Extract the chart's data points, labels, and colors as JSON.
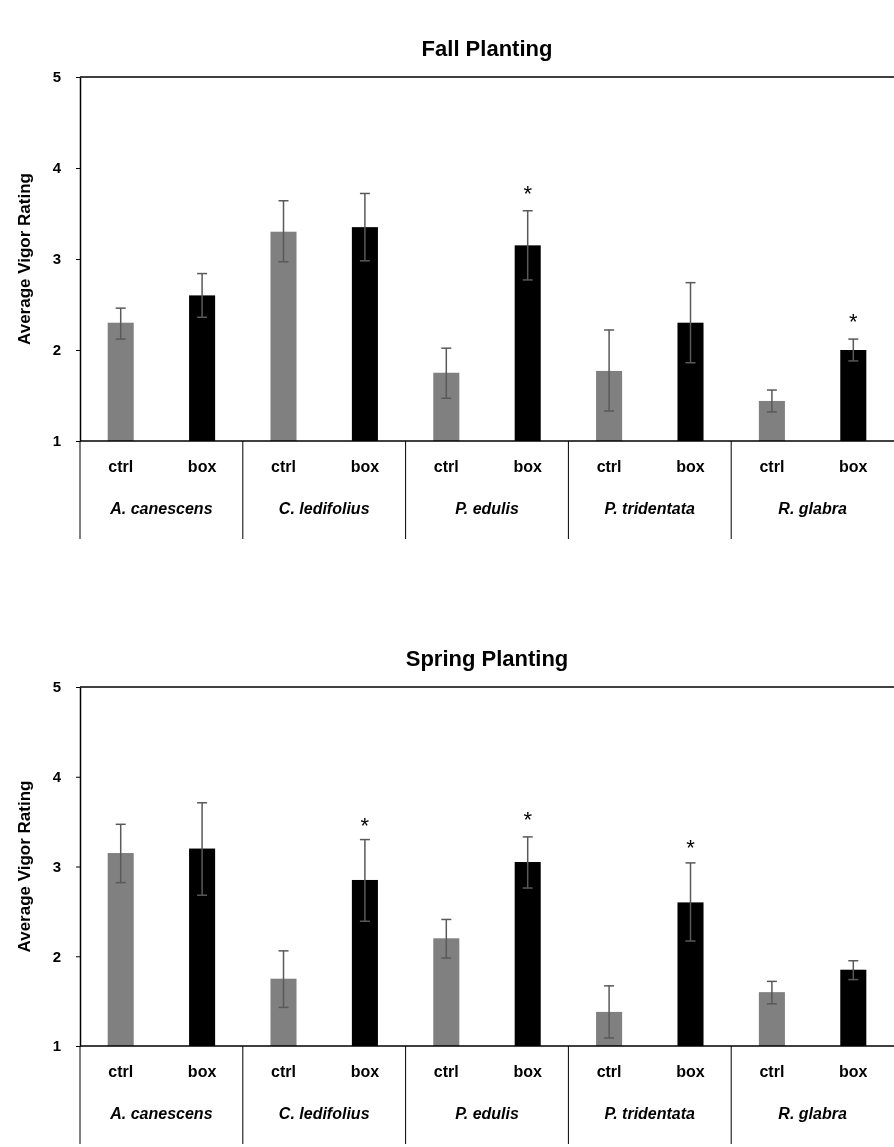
{
  "chart_data": [
    {
      "type": "bar",
      "title": "Fall Planting",
      "ylabel": "Average Vigor Rating",
      "categories": [
        "A. canescens",
        "C. ledifolius",
        "P. edulis",
        "P. tridentata",
        "R. glabra"
      ],
      "ylim": [
        1,
        5
      ],
      "yticks": [
        1,
        2,
        3,
        4,
        5
      ],
      "grid": false,
      "series": [
        {
          "name": "ctrl",
          "color": "#808080",
          "values": [
            2.3,
            3.3,
            1.75,
            1.77,
            1.44
          ],
          "errors": [
            [
              2.12,
              2.46
            ],
            [
              2.97,
              3.64
            ],
            [
              1.47,
              2.02
            ],
            [
              1.33,
              2.22
            ],
            [
              1.32,
              1.56
            ]
          ]
        },
        {
          "name": "box",
          "color": "#000000",
          "values": [
            2.6,
            3.35,
            3.15,
            2.3,
            2.0
          ],
          "errors": [
            [
              2.36,
              2.84
            ],
            [
              2.98,
              3.72
            ],
            [
              2.77,
              3.53
            ],
            [
              1.86,
              2.74
            ],
            [
              1.88,
              2.12
            ]
          ]
        }
      ],
      "annotations": [
        "*",
        "*"
      ]
    },
    {
      "type": "bar",
      "title": "Spring Planting",
      "ylabel": "Average Vigor Rating",
      "categories": [
        "A. canescens",
        "C. ledifolius",
        "P. edulis",
        "P. tridentata",
        "R. glabra"
      ],
      "ylim": [
        1,
        5
      ],
      "yticks": [
        1,
        2,
        3,
        4,
        5
      ],
      "grid": false,
      "series": [
        {
          "name": "ctrl",
          "color": "#808080",
          "values": [
            3.15,
            1.75,
            2.2,
            1.38,
            1.6
          ],
          "errors": [
            [
              2.82,
              3.47
            ],
            [
              1.43,
              2.06
            ],
            [
              1.98,
              2.41
            ],
            [
              1.09,
              1.67
            ],
            [
              1.47,
              1.72
            ]
          ]
        },
        {
          "name": "box",
          "color": "#000000",
          "values": [
            3.2,
            2.85,
            3.05,
            2.6,
            1.85
          ],
          "errors": [
            [
              2.68,
              3.71
            ],
            [
              2.39,
              3.3
            ],
            [
              2.76,
              3.33
            ],
            [
              2.17,
              3.04
            ],
            [
              1.74,
              1.95
            ]
          ]
        }
      ],
      "annotations": [
        "*",
        "*",
        "*"
      ]
    }
  ]
}
